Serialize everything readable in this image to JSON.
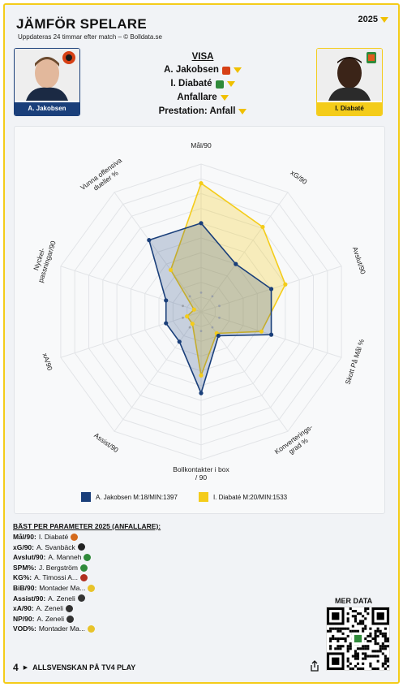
{
  "header": {
    "title": "JÄMFÖR SPELARE",
    "subtitle": "Uppdateras 24 timmar efter match – © Bolldata.se",
    "year": "2025"
  },
  "players": {
    "left": {
      "name": "A. Jakobsen",
      "color": "#1a3f7a"
    },
    "right": {
      "name": "I. Diabaté",
      "color": "#f4cc1a"
    }
  },
  "visa": {
    "heading": "VISA",
    "player1": "A. Jakobsen",
    "player2": "I. Diabaté",
    "position": "Anfallare",
    "performance": "Prestation: Anfall"
  },
  "radar": {
    "axes": [
      "Mål/90",
      "xG/90",
      "Avslut/90",
      "Skott På Mål %",
      "Konverterings-grad %",
      "Bollkontakter i box / 90",
      "Assist/90",
      "xA/90",
      "Nyckel-passningar/90",
      "Vunna offensiva dueller %"
    ],
    "rings": 5,
    "series": [
      {
        "name": "A. Jakobsen",
        "values": [
          0.6,
          0.4,
          0.5,
          0.5,
          0.2,
          0.55,
          0.25,
          0.25,
          0.25,
          0.6
        ],
        "color": "#1a3f7a"
      },
      {
        "name": "I. Diabaté",
        "values": [
          0.87,
          0.71,
          0.6,
          0.43,
          0.18,
          0.43,
          0.1,
          0.1,
          0.05,
          0.35
        ],
        "color": "#f4cc1a"
      }
    ]
  },
  "legend": {
    "left_label": "A. Jakobsen M:18/MIN:1397",
    "right_label": "I. Diabaté M:20/MIN:1533"
  },
  "best": {
    "heading": "BÄST PER PARAMETER 2025 (ANFALLARE):",
    "rows": [
      {
        "param": "Mål/90:",
        "player": "I. Diabaté",
        "club_color": "#d46a1c"
      },
      {
        "param": "xG/90:",
        "player": "A. Svanbäck",
        "club_color": "#222222"
      },
      {
        "param": "Avslut/90:",
        "player": "A. Manneh",
        "club_color": "#2f8a3a"
      },
      {
        "param": "SPM%:",
        "player": "J. Bergström",
        "club_color": "#2f8a3a"
      },
      {
        "param": "KG%:",
        "player": "A. Timossi A...",
        "club_color": "#b03020"
      },
      {
        "param": "BiB/90:",
        "player": "Montader Ma...",
        "club_color": "#e8c32a"
      },
      {
        "param": "Assist/90:",
        "player": "A. Zeneli",
        "club_color": "#333333"
      },
      {
        "param": "xA/90:",
        "player": "A. Zeneli",
        "club_color": "#333333"
      },
      {
        "param": "NP/90:",
        "player": "A. Zeneli",
        "club_color": "#333333"
      },
      {
        "param": "VOD%:",
        "player": "Montader Ma...",
        "club_color": "#e8c32a"
      }
    ]
  },
  "qr": {
    "label": "MER DATA"
  },
  "footer": {
    "text": "ALLSVENSKAN PÅ TV4 PLAY",
    "logo": "4"
  }
}
